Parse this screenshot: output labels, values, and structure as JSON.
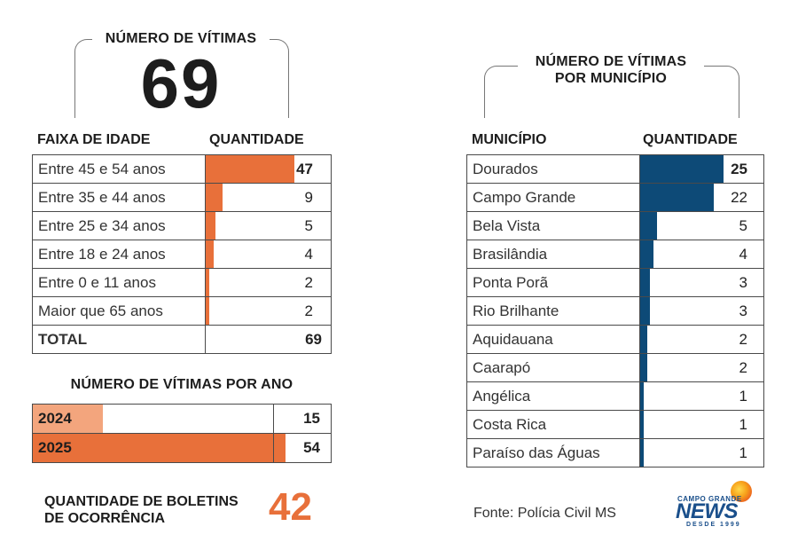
{
  "colors": {
    "orange": "#e8703a",
    "orange_light": "#f3a57d",
    "blue": "#0d4a77"
  },
  "victims": {
    "title": "NÚMERO DE VÍTIMAS",
    "total": "69"
  },
  "municipality_title": "NÚMERO DE VÍTIMAS POR MUNICÍPIO",
  "age_table": {
    "col_label": "FAIXA DE IDADE",
    "col_qty": "QUANTIDADE",
    "total_label": "TOTAL",
    "total_value": "69"
  },
  "year_title": "NÚMERO DE VÍTIMAS POR ANO",
  "muni_table": {
    "col_label": "MUNICÍPIO",
    "col_qty": "QUANTIDADE"
  },
  "boletins": {
    "label_line1": "QUANTIDADE DE BOLETINS",
    "label_line2": "DE OCORRÊNCIA",
    "value": "42"
  },
  "source": "Fonte: Polícia Civil MS",
  "logo": {
    "top": "CAMPO GRANDE",
    "main": "NEWS",
    "sub": "DESDE 1999"
  },
  "chart_data": [
    {
      "type": "bar",
      "title": "FAIXA DE IDADE / QUANTIDADE",
      "categories": [
        "Entre 45 e 54 anos",
        "Entre 35 e 44 anos",
        "Entre 25 e 34 anos",
        "Entre 18 e 24 anos",
        "Entre 0 e 11 anos",
        "Maior que 65 anos"
      ],
      "values": [
        47,
        9,
        5,
        4,
        2,
        2
      ],
      "xlim": [
        0,
        60
      ]
    },
    {
      "type": "bar",
      "title": "NÚMERO DE VÍTIMAS POR ANO",
      "categories": [
        "2024",
        "2025"
      ],
      "values": [
        15,
        54
      ],
      "xlim": [
        0,
        64
      ]
    },
    {
      "type": "bar",
      "title": "NÚMERO DE VÍTIMAS POR MUNICÍPIO",
      "categories": [
        "Dourados",
        "Campo Grande",
        "Bela Vista",
        "Brasilândia",
        "Ponta Porã",
        "Rio Brilhante",
        "Aquidauana",
        "Caarapó",
        "Angélica",
        "Costa Rica",
        "Paraíso das Águas"
      ],
      "values": [
        25,
        22,
        5,
        4,
        3,
        3,
        2,
        2,
        1,
        1,
        1
      ],
      "xlim": [
        0,
        34
      ]
    }
  ]
}
